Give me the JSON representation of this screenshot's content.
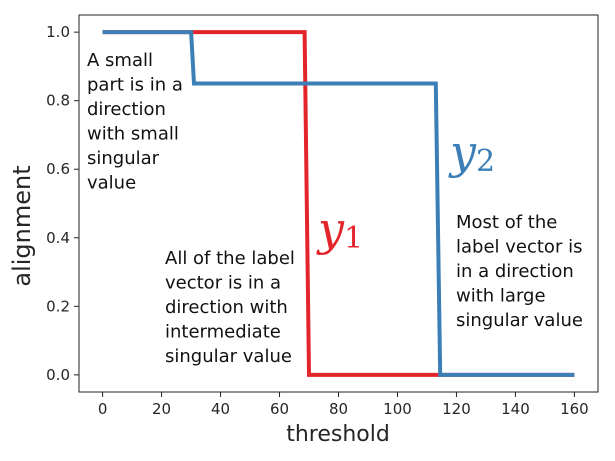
{
  "chart_data": {
    "type": "line",
    "xlabel": "threshold",
    "ylabel": "alignment",
    "xlim": [
      -8,
      168
    ],
    "ylim": [
      -0.05,
      1.05
    ],
    "xticks": [
      0,
      20,
      40,
      60,
      80,
      100,
      120,
      140,
      160
    ],
    "yticks": [
      0.0,
      0.2,
      0.4,
      0.6,
      0.8,
      1.0
    ],
    "grid": false,
    "series": [
      {
        "name": "y",
        "subscript": "1",
        "color": "#e3242b",
        "x": [
          0,
          30,
          68.5,
          70,
          114,
          160
        ],
        "y": [
          1.0,
          1.0,
          1.0,
          0.0,
          0.0,
          0.0
        ]
      },
      {
        "name": "y",
        "subscript": "2",
        "color": "#3c7fb6",
        "x": [
          0,
          30,
          31,
          70,
          113,
          114.5,
          160
        ],
        "y": [
          1.0,
          1.0,
          0.85,
          0.85,
          0.85,
          0.0,
          0.0
        ]
      }
    ],
    "annotations": [
      {
        "lines": [
          "A small",
          "part is in a",
          "direction",
          "with small",
          "singular",
          "value"
        ]
      },
      {
        "lines": [
          "All of the label",
          "vector is in a",
          "direction with",
          "intermediate",
          "singular value"
        ]
      },
      {
        "lines": [
          "Most of the",
          "label vector is",
          "in a direction",
          "with large",
          "singular value"
        ]
      }
    ]
  }
}
